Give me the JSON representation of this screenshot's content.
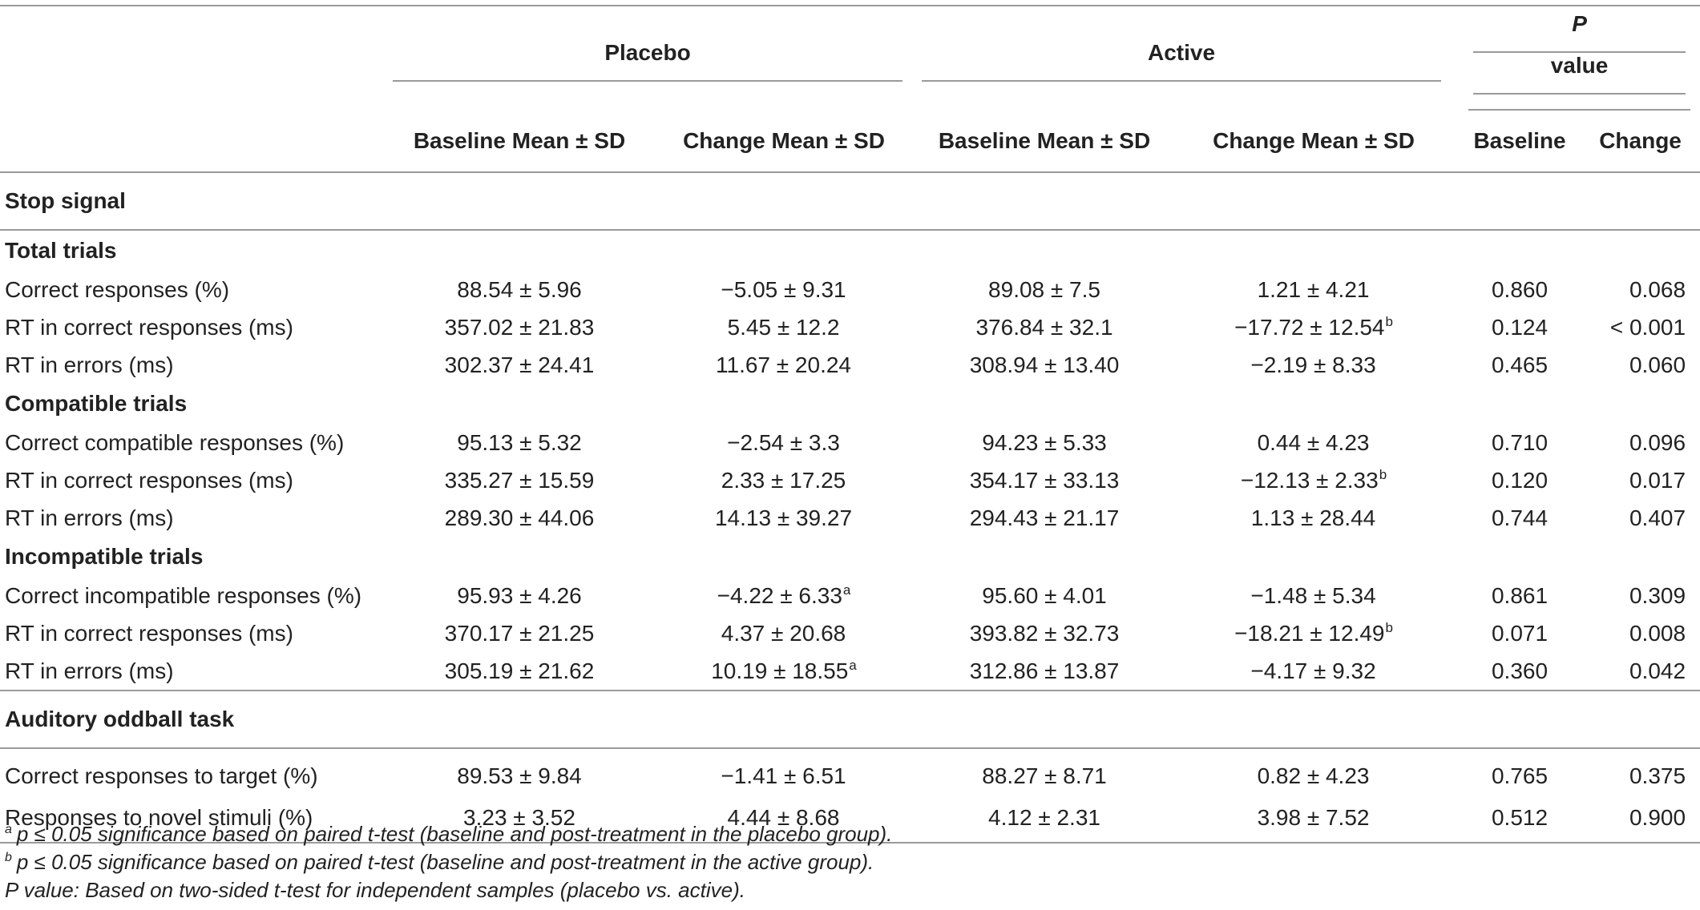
{
  "header": {
    "groups": {
      "placebo": "Placebo",
      "active": "Active",
      "pvalue_italic": "P",
      "pvalue_rest": " value"
    },
    "columns": {
      "placebo_baseline": "Baseline Mean ± SD",
      "placebo_change": "Change Mean ± SD",
      "active_baseline": "Baseline Mean ± SD",
      "active_change": "Change Mean ± SD",
      "p_baseline": "Baseline",
      "p_change": "Change"
    }
  },
  "sections": {
    "stop_signal": "Stop signal",
    "total_trials": "Total trials",
    "compatible_trials": "Compatible trials",
    "incompatible_trials": "Incompatible trials",
    "auditory": "Auditory oddball task"
  },
  "rows": {
    "total": [
      {
        "label": "Correct responses (%)",
        "pb": "88.54 ± 5.96",
        "pc": "−5.05 ± 9.31",
        "pc_sup": "",
        "ab": "89.08 ± 7.5",
        "ac": "1.21 ± 4.21",
        "ac_sup": "",
        "vb": "0.860",
        "vc": "0.068"
      },
      {
        "label": "RT in correct responses (ms)",
        "pb": "357.02 ± 21.83",
        "pc": "5.45 ± 12.2",
        "pc_sup": "",
        "ab": "376.84 ± 32.1",
        "ac": "−17.72 ± 12.54",
        "ac_sup": "b",
        "vb": "0.124",
        "vc": "< 0.001"
      },
      {
        "label": "RT in errors (ms)",
        "pb": "302.37 ± 24.41",
        "pc": "11.67 ± 20.24",
        "pc_sup": "",
        "ab": "308.94 ± 13.40",
        "ac": "−2.19 ± 8.33",
        "ac_sup": "",
        "vb": "0.465",
        "vc": "0.060"
      }
    ],
    "compatible": [
      {
        "label": "Correct compatible responses (%)",
        "pb": "95.13 ± 5.32",
        "pc": "−2.54 ± 3.3",
        "pc_sup": "",
        "ab": "94.23 ± 5.33",
        "ac": "0.44 ± 4.23",
        "ac_sup": "",
        "vb": "0.710",
        "vc": "0.096"
      },
      {
        "label": "RT in correct responses (ms)",
        "pb": "335.27 ± 15.59",
        "pc": "2.33 ± 17.25",
        "pc_sup": "",
        "ab": "354.17 ± 33.13",
        "ac": "−12.13 ± 2.33",
        "ac_sup": "b",
        "vb": "0.120",
        "vc": "0.017"
      },
      {
        "label": "RT in errors (ms)",
        "pb": "289.30 ± 44.06",
        "pc": "14.13 ± 39.27",
        "pc_sup": "",
        "ab": "294.43 ± 21.17",
        "ac": "1.13 ± 28.44",
        "ac_sup": "",
        "vb": "0.744",
        "vc": "0.407"
      }
    ],
    "incompatible": [
      {
        "label": "Correct incompatible responses (%)",
        "pb": "95.93 ± 4.26",
        "pc": "−4.22 ± 6.33",
        "pc_sup": "a",
        "ab": "95.60 ± 4.01",
        "ac": "−1.48 ± 5.34",
        "ac_sup": "",
        "vb": "0.861",
        "vc": "0.309"
      },
      {
        "label": "RT in correct responses (ms)",
        "pb": "370.17 ± 21.25",
        "pc": "4.37 ± 20.68",
        "pc_sup": "",
        "ab": "393.82 ± 32.73",
        "ac": "−18.21 ± 12.49",
        "ac_sup": "b",
        "vb": "0.071",
        "vc": "0.008"
      },
      {
        "label": "RT in errors (ms)",
        "pb": "305.19 ± 21.62",
        "pc": "10.19 ± 18.55",
        "pc_sup": "a",
        "ab": "312.86 ± 13.87",
        "ac": "−4.17 ± 9.32",
        "ac_sup": "",
        "vb": "0.360",
        "vc": "0.042"
      }
    ],
    "auditory": [
      {
        "label": "Correct responses to target (%)",
        "pb": "89.53 ± 9.84",
        "pc": "−1.41 ± 6.51",
        "pc_sup": "",
        "ab": "88.27 ± 8.71",
        "ac": "0.82 ± 4.23",
        "ac_sup": "",
        "vb": "0.765",
        "vc": "0.375"
      },
      {
        "label": "Responses to novel stimuli (%)",
        "pb": "3.23 ± 3.52",
        "pc": "4.44 ± 8.68",
        "pc_sup": "",
        "ab": "4.12 ± 2.31",
        "ac": "3.98 ± 7.52",
        "ac_sup": "",
        "vb": "0.512",
        "vc": "0.900"
      }
    ]
  },
  "footnotes": [
    {
      "mark": "a",
      "text": "p ≤ 0.05 significance based on paired t-test (baseline and post-treatment in the placebo group)."
    },
    {
      "mark": "b",
      "text": "p ≤ 0.05 significance based on paired t-test (baseline and post-treatment in the active group)."
    },
    {
      "mark": "",
      "text": "P value: Based on two-sided t-test for independent samples (placebo vs. active)."
    }
  ]
}
